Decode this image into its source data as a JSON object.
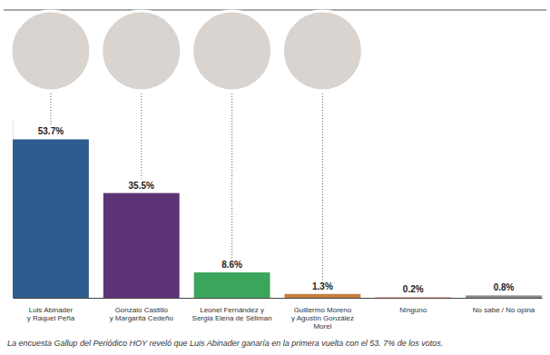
{
  "chart_data": {
    "type": "bar",
    "categories": [
      "Luis Abinader\ny Raquel Peña",
      "Gonzalo Castillo\ny Margarita Cedeño",
      "Leonel Fernández y\nSergia Elena de Séliman",
      "Guillermo Moreno\ny Agustín González\nMorel",
      "Ninguno",
      "No sabe / No opina"
    ],
    "values": [
      53.7,
      35.5,
      8.6,
      1.3,
      0.2,
      0.8
    ],
    "value_labels": [
      "53.7%",
      "35.5%",
      "8.6%",
      "1.3%",
      "0.2%",
      "0.8%"
    ],
    "colors": [
      "#2f5b8e",
      "#5c3476",
      "#3ba55c",
      "#c47f3e",
      "#ea8a72",
      "#8a8a8a"
    ],
    "ylim": [
      0,
      60
    ],
    "yticks": [],
    "data_labels": true,
    "tick_labels": "x",
    "caption": "La encuesta Gallup del Periódico HOY reveló que Luis Abinader ganaría en la primera vuelta con el 53. 7% de los votos."
  }
}
